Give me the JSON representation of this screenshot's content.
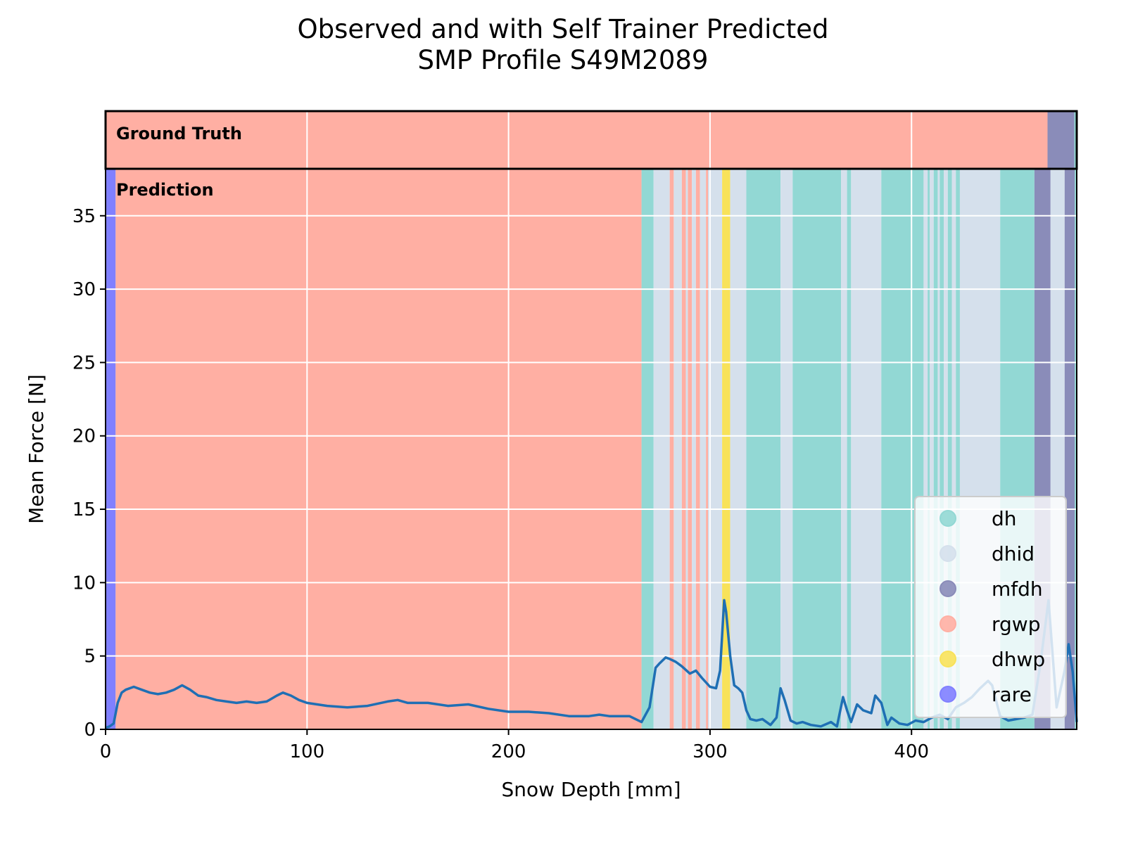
{
  "chart_data": {
    "type": "line",
    "title": "Observed and with Self Trainer Predicted\nSMP Profile S49M2089",
    "xlabel": "Snow Depth [mm]",
    "ylabel": "Mean Force [N]",
    "band_labels": [
      "Ground Truth",
      "Prediction"
    ],
    "xlim": [
      0,
      482
    ],
    "ylim": [
      0,
      38.2
    ],
    "xticks": [
      0,
      100,
      200,
      300,
      400
    ],
    "yticks": [
      0,
      5,
      10,
      15,
      20,
      25,
      30,
      35
    ],
    "grid": true,
    "legend": "lower right",
    "classes": [
      {
        "name": "dh",
        "color": "#92d8d4"
      },
      {
        "name": "dhid",
        "color": "#d5e0ec"
      },
      {
        "name": "mfdh",
        "color": "#8a8cb9"
      },
      {
        "name": "rgwp",
        "color": "#ffafa3"
      },
      {
        "name": "dhwp",
        "color": "#f8e25a"
      },
      {
        "name": "rare",
        "color": "#8080ff"
      }
    ],
    "ground_truth": [
      {
        "class": 3,
        "start": 0,
        "end": 467.5
      },
      {
        "class": 2,
        "start": 467.5,
        "end": 480.8
      },
      {
        "class": 0,
        "start": 480.8,
        "end": 482
      }
    ],
    "prediction": [
      {
        "class": 5,
        "start": 0,
        "end": 5
      },
      {
        "class": 3,
        "start": 5,
        "end": 266
      },
      {
        "class": 0,
        "start": 266,
        "end": 272
      },
      {
        "class": 1,
        "start": 272,
        "end": 280
      },
      {
        "class": 3,
        "start": 280,
        "end": 282
      },
      {
        "class": 1,
        "start": 282,
        "end": 286
      },
      {
        "class": 3,
        "start": 286,
        "end": 288
      },
      {
        "class": 1,
        "start": 288,
        "end": 289
      },
      {
        "class": 3,
        "start": 289,
        "end": 291
      },
      {
        "class": 1,
        "start": 291,
        "end": 293
      },
      {
        "class": 3,
        "start": 293,
        "end": 295
      },
      {
        "class": 1,
        "start": 295,
        "end": 298
      },
      {
        "class": 3,
        "start": 298,
        "end": 299
      },
      {
        "class": 1,
        "start": 299,
        "end": 306
      },
      {
        "class": 4,
        "start": 306,
        "end": 310
      },
      {
        "class": 1,
        "start": 310,
        "end": 318
      },
      {
        "class": 0,
        "start": 318,
        "end": 335
      },
      {
        "class": 1,
        "start": 335,
        "end": 341
      },
      {
        "class": 0,
        "start": 341,
        "end": 365
      },
      {
        "class": 1,
        "start": 365,
        "end": 368
      },
      {
        "class": 0,
        "start": 368,
        "end": 370
      },
      {
        "class": 1,
        "start": 370,
        "end": 385
      },
      {
        "class": 0,
        "start": 385,
        "end": 406
      },
      {
        "class": 1,
        "start": 406,
        "end": 408
      },
      {
        "class": 0,
        "start": 408,
        "end": 409
      },
      {
        "class": 1,
        "start": 409,
        "end": 411
      },
      {
        "class": 0,
        "start": 411,
        "end": 413
      },
      {
        "class": 1,
        "start": 413,
        "end": 414
      },
      {
        "class": 0,
        "start": 414,
        "end": 416
      },
      {
        "class": 1,
        "start": 416,
        "end": 418
      },
      {
        "class": 0,
        "start": 418,
        "end": 420
      },
      {
        "class": 1,
        "start": 420,
        "end": 422
      },
      {
        "class": 0,
        "start": 422,
        "end": 424
      },
      {
        "class": 1,
        "start": 424,
        "end": 444
      },
      {
        "class": 0,
        "start": 444,
        "end": 461
      },
      {
        "class": 2,
        "start": 461,
        "end": 469
      },
      {
        "class": 1,
        "start": 469,
        "end": 476
      },
      {
        "class": 2,
        "start": 476,
        "end": 481
      },
      {
        "class": 0,
        "start": 481,
        "end": 482
      }
    ],
    "x": [
      0,
      2,
      4,
      6,
      8,
      10,
      14,
      18,
      22,
      26,
      30,
      34,
      38,
      42,
      46,
      50,
      55,
      60,
      65,
      70,
      75,
      80,
      85,
      88,
      92,
      96,
      100,
      110,
      120,
      130,
      140,
      145,
      150,
      160,
      170,
      180,
      190,
      200,
      210,
      220,
      230,
      240,
      245,
      250,
      260,
      266,
      270,
      273,
      275,
      278,
      280,
      283,
      286,
      290,
      293,
      296,
      300,
      303,
      305,
      307,
      308,
      310,
      312,
      314,
      316,
      318,
      320,
      323,
      326,
      330,
      333,
      335,
      337,
      340,
      343,
      346,
      350,
      355,
      360,
      363,
      366,
      368,
      370,
      373,
      376,
      380,
      382,
      385,
      388,
      390,
      394,
      398,
      402,
      406,
      410,
      414,
      418,
      422,
      426,
      430,
      434,
      438,
      440,
      444,
      448,
      452,
      456,
      460,
      464,
      468,
      472,
      476,
      478,
      480,
      482
    ],
    "series": [
      {
        "name": "Mean Force",
        "color": "#1f6fb4",
        "values": [
          0.1,
          0.2,
          0.4,
          1.8,
          2.5,
          2.7,
          2.9,
          2.7,
          2.5,
          2.4,
          2.5,
          2.7,
          3.0,
          2.7,
          2.3,
          2.2,
          2.0,
          1.9,
          1.8,
          1.9,
          1.8,
          1.9,
          2.3,
          2.5,
          2.3,
          2.0,
          1.8,
          1.6,
          1.5,
          1.6,
          1.9,
          2.0,
          1.8,
          1.8,
          1.6,
          1.7,
          1.4,
          1.2,
          1.2,
          1.1,
          0.9,
          0.9,
          1.0,
          0.9,
          0.9,
          0.5,
          1.5,
          4.2,
          4.5,
          4.9,
          4.8,
          4.6,
          4.3,
          3.8,
          4.0,
          3.5,
          2.9,
          2.8,
          4.0,
          8.8,
          8.0,
          5.0,
          3.0,
          2.8,
          2.5,
          1.3,
          0.7,
          0.6,
          0.7,
          0.3,
          0.8,
          2.8,
          2.0,
          0.6,
          0.4,
          0.5,
          0.3,
          0.2,
          0.5,
          0.2,
          2.2,
          1.3,
          0.5,
          1.7,
          1.3,
          1.1,
          2.3,
          1.8,
          0.3,
          0.8,
          0.4,
          0.3,
          0.6,
          0.5,
          0.8,
          1.0,
          0.7,
          1.5,
          1.8,
          2.2,
          2.8,
          3.3,
          3.0,
          0.9,
          0.6,
          0.7,
          0.8,
          1.0,
          4.5,
          8.8,
          1.5,
          4.0,
          5.8,
          3.9,
          0.5
        ]
      }
    ]
  }
}
